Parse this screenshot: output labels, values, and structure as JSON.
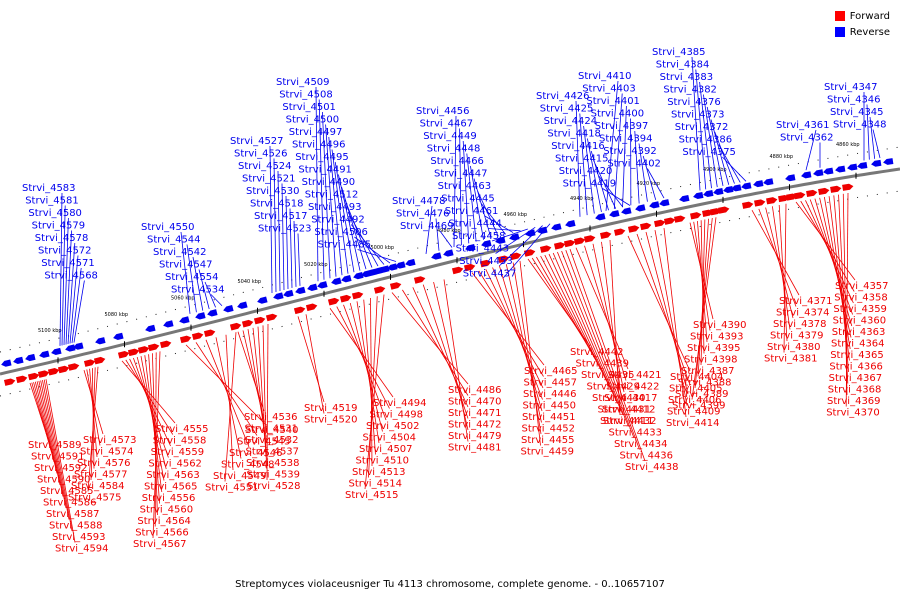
{
  "legend": {
    "items": [
      {
        "label": "Forward",
        "color": "#ff0000"
      },
      {
        "label": "Reverse",
        "color": "#0000ff"
      }
    ]
  },
  "caption": "Streptomyces violaceusniger Tu 4113 chromosome, complete genome. - 0..10657107",
  "colors": {
    "forward": "#ee0000",
    "reverse": "#0000ee",
    "backbone": "#777777"
  },
  "axis": {
    "ticks": [
      "5100 kbp",
      "5080 kbp",
      "5060 kbp",
      "5040 kbp",
      "5020 kbp",
      "5000 kbp",
      "4980 kbp",
      "4960 kbp",
      "4940 kbp",
      "4920 kbp",
      "4900 kbp",
      "4880 kbp",
      "4860 kbp"
    ]
  },
  "labels": {
    "reverse": [
      {
        "group": "g1",
        "names": [
          "Strvi_4583",
          "Strvi_4581",
          "Strvi_4580",
          "Strvi_4579",
          "Strvi_4578",
          "Strvi_4572",
          "Strvi_4571",
          "Strvi_4568"
        ]
      },
      {
        "group": "g2",
        "names": [
          "Strvi_4550",
          "Strvi_4544",
          "Strvi_4542",
          "Strvi_4547",
          "Strvi_4554",
          "Strvi_4534"
        ]
      },
      {
        "group": "g3",
        "names": [
          "Strvi_4527",
          "Strvi_4526",
          "Strvi_4524",
          "Strvi_4521",
          "Strvi_4530",
          "Strvi_4518",
          "Strvi_4517",
          "Strvi_4523"
        ]
      },
      {
        "group": "g4",
        "names": [
          "Strvi_4509",
          "Strvi_4508",
          "Strvi_4501",
          "Strvi_4500",
          "Strvi_4497",
          "Strvi_4496",
          "Strvi_4495",
          "Strvi_4491",
          "Strvi_4490",
          "Strvi_4512",
          "Strvi_4493",
          "Strvi_4492",
          "Strvi_4506",
          "Strvi_4485"
        ]
      },
      {
        "group": "g5",
        "names": [
          "Strvi_4478",
          "Strvi_4476",
          "Strvi_4469"
        ]
      },
      {
        "group": "g6",
        "names": [
          "Strvi_4456",
          "Strvi_4467",
          "Strvi_4449",
          "Strvi_4448",
          "Strvi_4466",
          "Strvi_4447",
          "Strvi_4463",
          "Strvi_4445",
          "Strvi_4461",
          "Strvi_4444",
          "Strvi_4458",
          "Strvi_4443",
          "Strvi_4453",
          "Strvi_4437"
        ]
      },
      {
        "group": "g7",
        "names": [
          "Strvi_4426",
          "Strvi_4425",
          "Strvi_4424",
          "Strvi_4418",
          "Strvi_4416",
          "Strvi_4415",
          "Strvi_4420",
          "Strvi_4419"
        ]
      },
      {
        "group": "g8",
        "names": [
          "Strvi_4410",
          "Strvi_4403",
          "Strvi_4401",
          "Strvi_4400",
          "Strvi_4397",
          "Strvi_4394",
          "Strvi_4392",
          "Strvi_4402"
        ]
      },
      {
        "group": "g9",
        "names": [
          "Strvi_4385",
          "Strvi_4384",
          "Strvi_4383",
          "Strvi_4382",
          "Strvi_4376",
          "Strvi_4373",
          "Strvi_4372",
          "Strvi_4386",
          "Strvi_4375"
        ]
      },
      {
        "group": "g10",
        "names": [
          "Strvi_4361",
          "Strvi_4362"
        ]
      },
      {
        "group": "g11",
        "names": [
          "Strvi_4347",
          "Strvi_4346",
          "Strvi_4345",
          "Strvi_4348"
        ]
      }
    ],
    "forward": [
      {
        "group": "f1",
        "names": [
          "Strvi_4589",
          "Strvi_4591",
          "Strvi_4592",
          "Strvi_4590",
          "Strvi_4585",
          "Strvi_4586",
          "Strvi_4587",
          "Strvi_4588",
          "Strvi_4593",
          "Strvi_4594"
        ]
      },
      {
        "group": "f2",
        "names": [
          "Strvi_4573",
          "Strvi_4574",
          "Strvi_4576",
          "Strvi_4577",
          "Strvi_4584",
          "Strvi_4575"
        ]
      },
      {
        "group": "f3",
        "names": [
          "Strvi_4555",
          "Strvi_4558",
          "Strvi_4559",
          "Strvi_4562",
          "Strvi_4563",
          "Strvi_4565",
          "Strvi_4556",
          "Strvi_4560",
          "Strvi_4564",
          "Strvi_4566",
          "Strvi_4567"
        ]
      },
      {
        "group": "f4",
        "names": [
          "Strvi_4540",
          "Strvi_4545",
          "Strvi_4546",
          "Strvi_4548",
          "Strvi_4549",
          "Strvi_4551"
        ]
      },
      {
        "group": "f5",
        "names": [
          "Strvi_4536",
          "Strvi_4531",
          "Strvi_4532",
          "Strvi_4537",
          "Strvi_4538",
          "Strvi_4539",
          "Strvi_4528"
        ]
      },
      {
        "group": "f6",
        "names": [
          "Strvi_4519",
          "Strvi_4520"
        ]
      },
      {
        "group": "f7",
        "names": [
          "Strvi_4494",
          "Strvi_4498",
          "Strvi_4502",
          "Strvi_4504",
          "Strvi_4507",
          "Strvi_4510",
          "Strvi_4513",
          "Strvi_4514",
          "Strvi_4515"
        ]
      },
      {
        "group": "f8",
        "names": [
          "Strvi_4486",
          "Strvi_4470",
          "Strvi_4471",
          "Strvi_4472",
          "Strvi_4479",
          "Strvi_4481"
        ]
      },
      {
        "group": "f9",
        "names": [
          "Strvi_4465",
          "Strvi_4457",
          "Strvi_4446",
          "Strvi_4450",
          "Strvi_4451",
          "Strvi_4452",
          "Strvi_4455",
          "Strvi_4459"
        ]
      },
      {
        "group": "f10",
        "names": [
          "Strvi_4442",
          "Strvi_4439",
          "Strvi_4435",
          "Strvi_4429",
          "Strvi_4430",
          "Strvi_4431",
          "Strvi_4432",
          "Strvi_4433",
          "Strvi_4434",
          "Strvi_4436",
          "Strvi_4438"
        ]
      },
      {
        "group": "f11",
        "names": [
          "Strvi_4421",
          "Strvi_4422",
          "Strvi_4417",
          "Strvi_4412",
          "Strvi_4411"
        ]
      },
      {
        "group": "f12",
        "names": [
          "Strvi_4404",
          "Strvi_4405",
          "Strvi_4406",
          "Strvi_4409",
          "Strvi_4414"
        ]
      },
      {
        "group": "f13",
        "names": [
          "Strvi_4390",
          "Strvi_4393",
          "Strvi_4395",
          "Strvi_4398",
          "Strvi_4387",
          "Strvi_4388",
          "Strvi_4389",
          "Strvi_4399"
        ]
      },
      {
        "group": "f14",
        "names": [
          "Strvi_4371",
          "Strvi_4374",
          "Strvi_4378",
          "Strvi_4379",
          "Strvi_4380",
          "Strvi_4381"
        ]
      },
      {
        "group": "f15",
        "names": [
          "Strvi_4357",
          "Strvi_4358",
          "Strvi_4359",
          "Strvi_4360",
          "Strvi_4363",
          "Strvi_4364",
          "Strvi_4365",
          "Strvi_4366",
          "Strvi_4367",
          "Strvi_4368",
          "Strvi_4369",
          "Strvi_4370"
        ]
      }
    ]
  }
}
